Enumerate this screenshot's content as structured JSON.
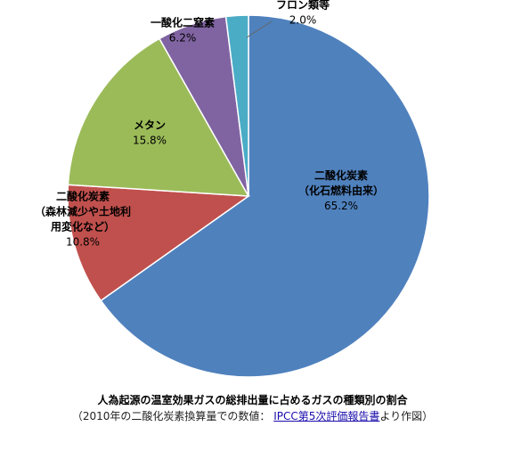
{
  "chart_data": {
    "type": "pie",
    "slices": [
      {
        "label_lines": [
          "二酸化炭素",
          "（化石燃料由来）"
        ],
        "value": 65.2,
        "value_label": "65.2%",
        "color": "#4f81bd"
      },
      {
        "label_lines": [
          "二酸化炭素",
          "（森林減少や土地利",
          "用変化など）"
        ],
        "value": 10.8,
        "value_label": "10.8%",
        "color": "#c0504d"
      },
      {
        "label_lines": [
          "メタン"
        ],
        "value": 15.8,
        "value_label": "15.8%",
        "color": "#9bbb59"
      },
      {
        "label_lines": [
          "一酸化二窒素"
        ],
        "value": 6.2,
        "value_label": "6.2%",
        "color": "#8064a2"
      },
      {
        "label_lines": [
          "フロン類等"
        ],
        "value": 2.0,
        "value_label": "2.0%",
        "color": "#4bacc6"
      }
    ],
    "title": "人為起源の温室効果ガスの総排出量に占めるガスの種類別の割合",
    "legend": "none"
  },
  "caption": {
    "source_prefix": "（2010年の二酸化炭素換算量での数値：",
    "source_link": "IPCC第5次評価報告書",
    "source_suffix": "より作図）"
  }
}
